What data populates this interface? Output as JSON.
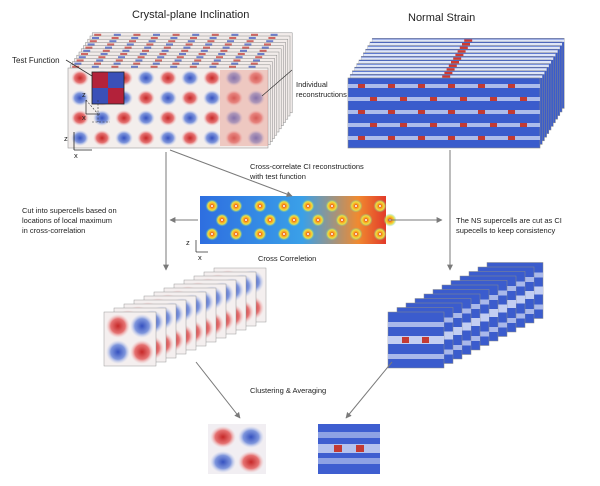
{
  "titles": {
    "ci": "Crystal-plane Inclination",
    "ns": "Normal Strain"
  },
  "labels": {
    "test_function": "Test Function",
    "individual_1": "Individual",
    "individual_2": "reconstructions",
    "cross_corr_1": "Cross-correlate CI reconstructions",
    "cross_corr_2": "with test function",
    "cut_1": "Cut into supercells based on",
    "cut_2": "locations of local maximum",
    "cut_3": "in cross-correlation",
    "cross_correlation": "Cross Correletion",
    "ns_cut_1": "The NS supercells are cut as CI",
    "ns_cut_2": "supecells to keep consistency",
    "clustering": "Clustering & Averaging"
  },
  "axes": {
    "z": "z",
    "x": "x"
  },
  "colors": {
    "ci_red": "#c0302c",
    "ci_blue": "#3c5cc8",
    "ns_blue": "#2e54c8",
    "arrow": "#7a7a7a"
  }
}
